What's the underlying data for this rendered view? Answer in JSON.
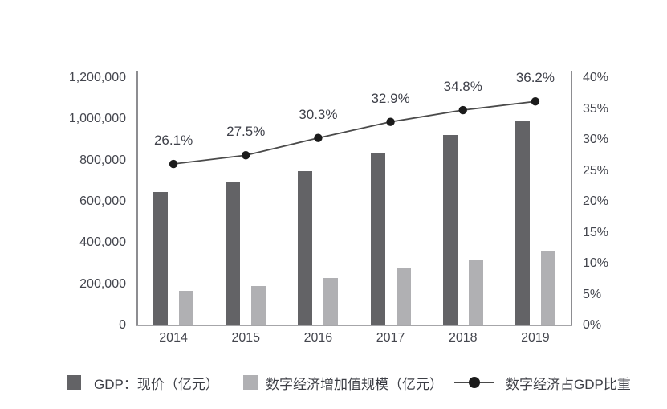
{
  "figure": {
    "background": "#ffffff"
  },
  "legend": {
    "position": "bottom",
    "items": [
      {
        "label": "GDP：现价（亿元）",
        "swatch": "square",
        "color": "#636366"
      },
      {
        "label": "数字经济增加值规模（亿元）",
        "swatch": "square",
        "color": "#b0b0b3"
      },
      {
        "label": "数字经济占GDP比重",
        "swatch": "line-dot",
        "color": "#1b1b1b"
      }
    ]
  },
  "chart_data": {
    "type": "combo-bar-line",
    "title": "",
    "categories": [
      "2014",
      "2015",
      "2016",
      "2017",
      "2018",
      "2019"
    ],
    "series": [
      {
        "name": "GDP：现价（亿元）",
        "type": "bar",
        "axis": "left",
        "color": "#636366",
        "values": [
          643000,
          689000,
          746000,
          832000,
          919000,
          991000
        ]
      },
      {
        "name": "数字经济增加值规模（亿元）",
        "type": "bar",
        "axis": "left",
        "color": "#b0b0b3",
        "values": [
          162000,
          186000,
          226000,
          272000,
          313000,
          358000
        ]
      },
      {
        "name": "数字经济占GDP比重",
        "type": "line",
        "axis": "right",
        "color": "#4a4a4a",
        "marker_color": "#1b1b1b",
        "values": [
          26.1,
          27.5,
          30.3,
          32.9,
          34.8,
          36.2
        ],
        "point_labels": [
          "26.1%",
          "27.5%",
          "30.3%",
          "32.9%",
          "34.8%",
          "36.2%"
        ]
      }
    ],
    "left_axis": {
      "min": 0,
      "max": 1200000,
      "step": 200000,
      "tick_labels_bottom_up": [
        "0",
        "200,000",
        "400,000",
        "600,000",
        "800,000",
        "1,000,000",
        "1,200,000"
      ]
    },
    "right_axis": {
      "min": 0,
      "max": 40,
      "step": 5,
      "tick_labels_bottom_up": [
        "0%",
        "5%",
        "10%",
        "15%",
        "20%",
        "25%",
        "30%",
        "35%",
        "40%"
      ]
    },
    "grid": false,
    "legend_position": "bottom"
  }
}
